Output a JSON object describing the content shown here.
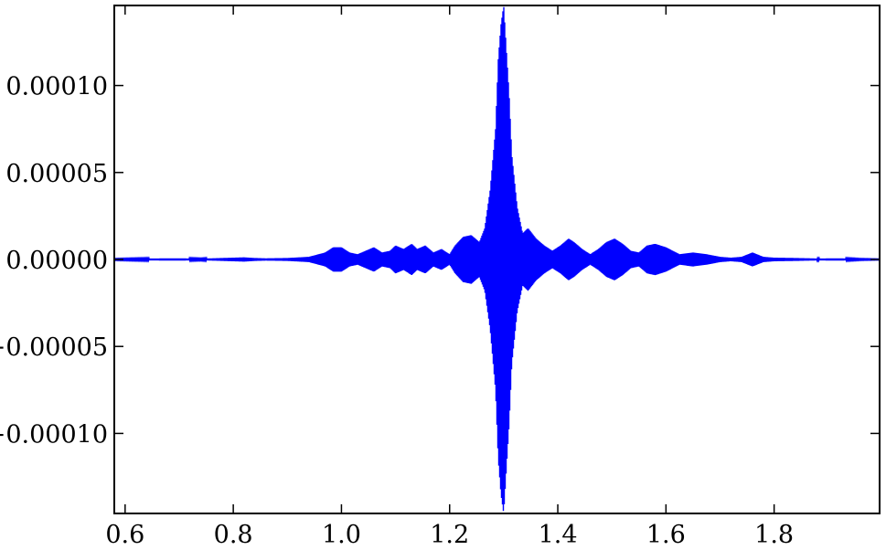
{
  "chart_data": {
    "type": "line",
    "title": "",
    "xlabel": "",
    "ylabel": "",
    "xlim": [
      0.58,
      1.995
    ],
    "ylim": [
      -0.000146,
      0.000146
    ],
    "grid": false,
    "legend": "none",
    "x_ticks": [
      0.6,
      0.8,
      1.0,
      1.2,
      1.4,
      1.6,
      1.8
    ],
    "x_tick_labels": [
      "0.6",
      "0.8",
      "1.0",
      "1.2",
      "1.4",
      "1.6",
      "1.8"
    ],
    "y_ticks": [
      0.0001,
      5e-05,
      0,
      -5e-05,
      -0.0001
    ],
    "y_tick_labels": [
      "0.00010",
      "0.00005",
      "0.00000",
      "−0.00005",
      "−0.00010"
    ],
    "series": [
      {
        "color": "#0000ff",
        "envelope_x": [
          0.58,
          0.64,
          0.7,
          0.74,
          0.78,
          0.82,
          0.84,
          0.86,
          0.9,
          0.94,
          0.97,
          0.985,
          1.0,
          1.015,
          1.03,
          1.045,
          1.06,
          1.075,
          1.09,
          1.1,
          1.115,
          1.13,
          1.14,
          1.155,
          1.17,
          1.185,
          1.2,
          1.21,
          1.225,
          1.24,
          1.255,
          1.265,
          1.275,
          1.285,
          1.29,
          1.295,
          1.3,
          1.305,
          1.31,
          1.315,
          1.325,
          1.335,
          1.345,
          1.36,
          1.375,
          1.39,
          1.405,
          1.42,
          1.43,
          1.445,
          1.46,
          1.475,
          1.49,
          1.505,
          1.52,
          1.535,
          1.55,
          1.565,
          1.58,
          1.6,
          1.625,
          1.65,
          1.675,
          1.7,
          1.72,
          1.74,
          1.76,
          1.78,
          1.8,
          1.84,
          1.88,
          1.92,
          1.96,
          1.995
        ],
        "envelope_amplitude": [
          3e-07,
          5e-07,
          6e-07,
          4e-07,
          8e-07,
          1.2e-06,
          8e-07,
          6e-07,
          8e-07,
          1.5e-06,
          4e-06,
          7e-06,
          7e-06,
          4e-06,
          3e-06,
          5e-06,
          7e-06,
          4e-06,
          5e-06,
          8e-06,
          6e-06,
          9e-06,
          6e-06,
          8e-06,
          4e-06,
          6e-06,
          3e-06,
          8e-06,
          1.3e-05,
          1.4e-05,
          1e-05,
          1.8e-05,
          4e-05,
          7.5e-05,
          0.000115,
          0.000135,
          0.000146,
          0.00012,
          9.5e-05,
          6e-05,
          3e-05,
          1.5e-05,
          1.8e-05,
          1.2e-05,
          8e-06,
          5e-06,
          8e-06,
          1.2e-05,
          1e-05,
          6e-06,
          3e-06,
          6e-06,
          1e-05,
          1.2e-05,
          9e-06,
          5e-06,
          4e-06,
          8e-06,
          9e-06,
          7e-06,
          3e-06,
          4e-06,
          3e-06,
          1.5e-06,
          1e-06,
          1.5e-06,
          4e-06,
          1.5e-06,
          1e-06,
          8e-07,
          5e-07,
          6e-07,
          3e-07,
          2e-07
        ]
      }
    ]
  }
}
